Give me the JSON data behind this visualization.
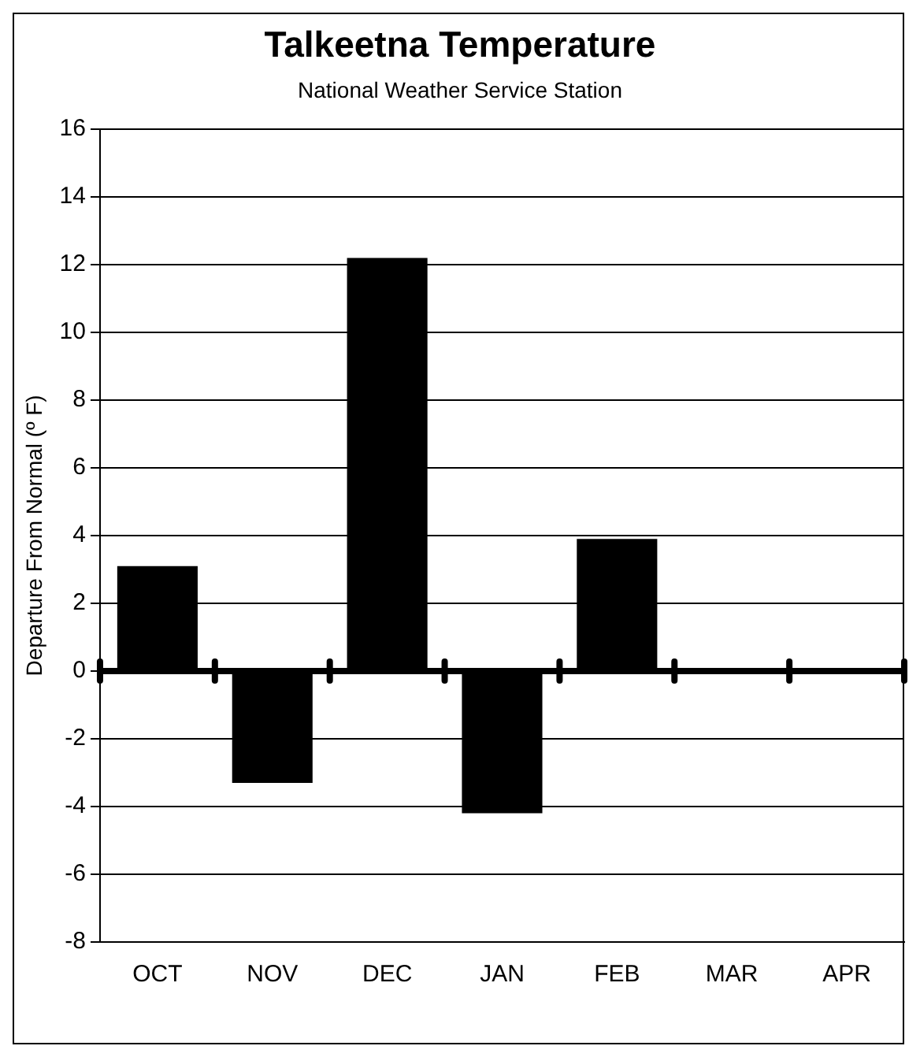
{
  "chart_data": {
    "type": "bar",
    "title": "Talkeetna Temperature",
    "subtitle": "National Weather Service Station",
    "ylabel": "Departure From Normal (º F)",
    "categories": [
      "OCT",
      "NOV",
      "DEC",
      "JAN",
      "FEB",
      "MAR",
      "APR"
    ],
    "values": [
      3.1,
      -3.3,
      12.2,
      -4.2,
      3.9,
      null,
      null
    ],
    "color": "#000000",
    "ylim": [
      -8,
      16
    ],
    "yticks": [
      -8,
      -6,
      -4,
      -2,
      0,
      2,
      4,
      6,
      8,
      10,
      12,
      14,
      16
    ],
    "grid": "y",
    "legend": false
  }
}
